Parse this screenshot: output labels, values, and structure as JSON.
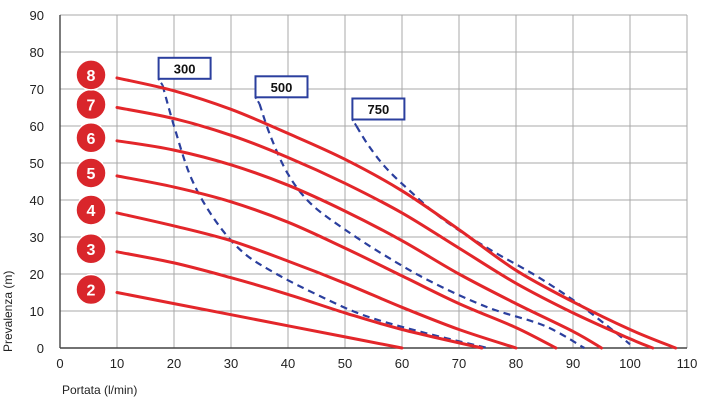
{
  "chart_data": {
    "type": "line",
    "xlabel": "Portata (l/min)",
    "ylabel": "Prevalenza (m)",
    "xlim": [
      0,
      110
    ],
    "ylim": [
      0,
      90
    ],
    "xticks": [
      0,
      10,
      20,
      30,
      40,
      50,
      60,
      70,
      80,
      90,
      100,
      110
    ],
    "yticks": [
      0,
      10,
      20,
      30,
      40,
      50,
      60,
      70,
      80,
      90
    ],
    "grid": true,
    "colors": {
      "pump_curve": "#e3262a",
      "marker": "#d9262b",
      "power_curve": "#2b3f9e",
      "grid": "#a9a9a9"
    },
    "series": [
      {
        "name": "2",
        "points": [
          [
            10,
            15
          ],
          [
            20,
            12
          ],
          [
            30,
            9
          ],
          [
            40,
            6
          ],
          [
            50,
            3
          ],
          [
            60,
            0
          ]
        ]
      },
      {
        "name": "3",
        "points": [
          [
            10,
            26
          ],
          [
            20,
            23
          ],
          [
            30,
            19
          ],
          [
            40,
            14.5
          ],
          [
            50,
            9.5
          ],
          [
            60,
            5
          ],
          [
            74,
            0
          ]
        ]
      },
      {
        "name": "4",
        "points": [
          [
            10,
            36.5
          ],
          [
            20,
            33
          ],
          [
            30,
            29
          ],
          [
            40,
            23.5
          ],
          [
            50,
            17.5
          ],
          [
            60,
            11
          ],
          [
            70,
            5
          ],
          [
            80,
            0
          ]
        ]
      },
      {
        "name": "5",
        "points": [
          [
            10,
            46.5
          ],
          [
            20,
            43.5
          ],
          [
            30,
            39.5
          ],
          [
            40,
            34
          ],
          [
            50,
            27
          ],
          [
            60,
            19.5
          ],
          [
            70,
            12
          ],
          [
            80,
            5.5
          ],
          [
            87,
            0
          ]
        ]
      },
      {
        "name": "6",
        "points": [
          [
            10,
            56
          ],
          [
            20,
            53.5
          ],
          [
            30,
            49.5
          ],
          [
            40,
            44
          ],
          [
            50,
            37
          ],
          [
            60,
            29
          ],
          [
            70,
            20
          ],
          [
            80,
            12
          ],
          [
            90,
            4.5
          ],
          [
            95,
            0
          ]
        ]
      },
      {
        "name": "7",
        "points": [
          [
            10,
            65
          ],
          [
            20,
            62
          ],
          [
            30,
            57.5
          ],
          [
            40,
            51.5
          ],
          [
            50,
            44.5
          ],
          [
            60,
            36.5
          ],
          [
            70,
            27
          ],
          [
            80,
            17.5
          ],
          [
            90,
            9.5
          ],
          [
            100,
            2.5
          ],
          [
            104,
            0
          ]
        ]
      },
      {
        "name": "8",
        "points": [
          [
            10,
            73
          ],
          [
            20,
            69.5
          ],
          [
            30,
            64.5
          ],
          [
            40,
            58
          ],
          [
            50,
            51
          ],
          [
            60,
            42.5
          ],
          [
            70,
            32
          ],
          [
            80,
            21
          ],
          [
            90,
            12.5
          ],
          [
            100,
            5
          ],
          [
            108,
            0
          ]
        ]
      }
    ],
    "power_curves": [
      {
        "name": "300",
        "points": [
          [
            18,
            71
          ],
          [
            20,
            60
          ],
          [
            23,
            46
          ],
          [
            27,
            35
          ],
          [
            32,
            26
          ],
          [
            38,
            20
          ],
          [
            45,
            14.5
          ],
          [
            53,
            9
          ],
          [
            63,
            4.5
          ],
          [
            75,
            0
          ]
        ]
      },
      {
        "name": "500",
        "points": [
          [
            35,
            66
          ],
          [
            37,
            57
          ],
          [
            40,
            47
          ],
          [
            44,
            39
          ],
          [
            50,
            32
          ],
          [
            57,
            25
          ],
          [
            65,
            18
          ],
          [
            75,
            11
          ],
          [
            85,
            6
          ],
          [
            92,
            0
          ]
        ]
      },
      {
        "name": "750",
        "points": [
          [
            52,
            60
          ],
          [
            54,
            55
          ],
          [
            57,
            49
          ],
          [
            61,
            43
          ],
          [
            67,
            35
          ],
          [
            75,
            27
          ],
          [
            83,
            20
          ],
          [
            90,
            13
          ],
          [
            96,
            6
          ],
          [
            100,
            1
          ]
        ]
      }
    ],
    "box_labels": [
      "300",
      "500",
      "750"
    ],
    "markers": [
      "2",
      "3",
      "4",
      "5",
      "6",
      "7",
      "8"
    ]
  }
}
